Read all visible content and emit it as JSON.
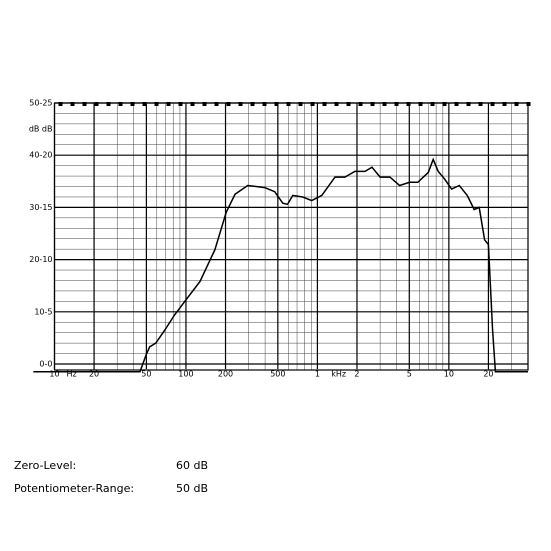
{
  "chart_data": {
    "type": "line",
    "xscale": "log",
    "xlim": [
      10,
      40000
    ],
    "ylim": [
      0,
      50
    ],
    "xticks": [
      10,
      20,
      50,
      100,
      200,
      500,
      {
        "value": 1000,
        "label": "1"
      },
      {
        "value": 2000,
        "label": "2"
      },
      {
        "value": 5000,
        "label": "5"
      },
      {
        "value": 10000,
        "label": "10"
      },
      {
        "value": 20000,
        "label": "20"
      }
    ],
    "x_unit_hz": "Hz",
    "x_unit_khz": "kHz",
    "xgrid_minor": [
      30,
      40,
      60,
      70,
      80,
      90,
      300,
      400,
      600,
      700,
      800,
      900,
      3000,
      4000,
      6000,
      7000,
      8000,
      9000,
      30000
    ],
    "yticks": [
      {
        "value": 0,
        "label": "0-0"
      },
      {
        "value": 10,
        "label": "10-5"
      },
      {
        "value": 20,
        "label": "20-10"
      },
      {
        "value": 30,
        "label": "30-15"
      },
      {
        "value": 40,
        "label": "40-20"
      },
      {
        "value": 50,
        "label": "50-25"
      }
    ],
    "y_unit": "dB dB",
    "ygrid_minor": [
      2,
      4,
      6,
      8,
      12,
      14,
      16,
      18,
      22,
      24,
      26,
      28,
      32,
      34,
      36,
      38,
      42,
      44,
      46,
      48
    ],
    "grid": true,
    "series": [
      {
        "color": "#000000",
        "x": [
          6.9,
          44.7,
          49.7,
          53,
          59,
          69,
          82,
          100,
          128,
          166,
          202,
          236,
          295,
          398,
          473,
          545,
          593,
          650,
          773,
          905,
          1080,
          1360,
          1620,
          1930,
          2300,
          2600,
          3000,
          3560,
          4220,
          5030,
          5800,
          6970,
          7600,
          8300,
          9300,
          10500,
          12000,
          13800,
          15600,
          17000,
          18700,
          20000,
          21500,
          22600,
          40000
        ],
        "values": [
          -1.5,
          -1.5,
          1.7,
          3.3,
          4,
          6.5,
          9.4,
          12.3,
          15.8,
          21.9,
          29,
          32.5,
          34.2,
          33.8,
          33,
          30.8,
          30.6,
          32.3,
          32,
          31.3,
          32.3,
          35.8,
          35.8,
          36.9,
          36.9,
          37.7,
          35.8,
          35.8,
          34.2,
          34.8,
          34.8,
          36.7,
          39.2,
          36.9,
          35.4,
          33.5,
          34.2,
          32.3,
          29.6,
          30,
          23.8,
          22.9,
          6.5,
          -1.5,
          -1.5
        ]
      }
    ]
  },
  "info": {
    "zero_level_label": "Zero-Level:",
    "zero_level_value": "60 dB",
    "range_label": "Potentiometer-Range:",
    "range_value": "50 dB"
  }
}
